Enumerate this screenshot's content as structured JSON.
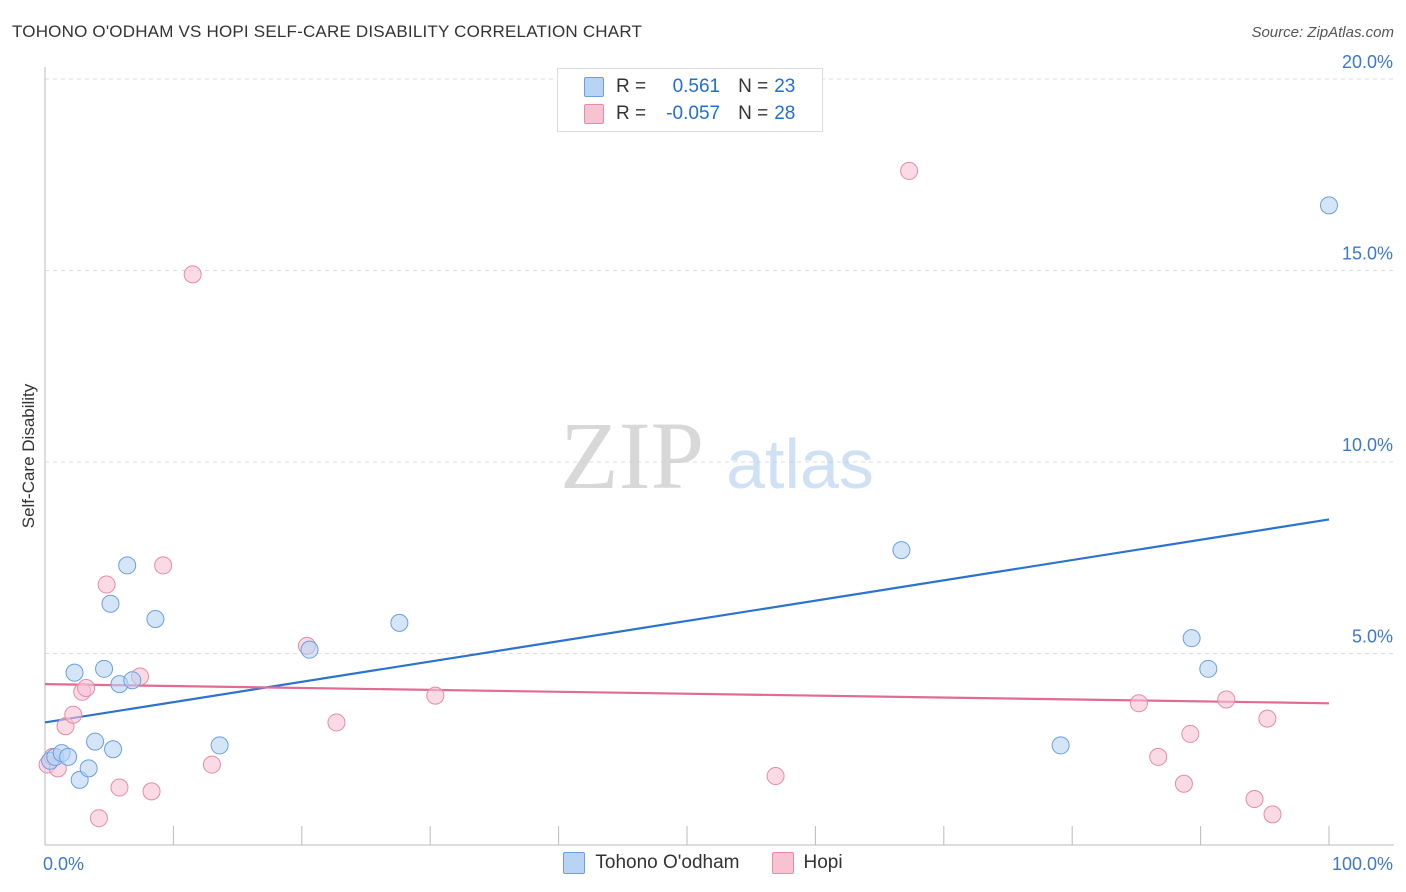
{
  "title": "TOHONO O'ODHAM VS HOPI SELF-CARE DISABILITY CORRELATION CHART",
  "source": "Source: ZipAtlas.com",
  "watermark": {
    "zip": "ZIP",
    "atlas": "atlas"
  },
  "legend": {
    "r_label": "R =",
    "n_label": "N =",
    "rows": [
      {
        "r": "0.561",
        "n": "23"
      },
      {
        "r": "-0.057",
        "n": "28"
      }
    ]
  },
  "colors": {
    "series1_fill": "#b8d3f3",
    "series1_edge": "#6c9fe0",
    "series1_line": "#2c72cf",
    "series2_fill": "#f7c3d3",
    "series2_edge": "#e88aa8",
    "series2_line": "#e06b95",
    "tick_label": "#3b78d0",
    "grid": "#dcdcdc"
  },
  "chart_data": {
    "type": "scatter",
    "title": "TOHONO O'ODHAM VS HOPI SELF-CARE DISABILITY CORRELATION CHART",
    "xlabel": "",
    "ylabel": "Self-Care Disability",
    "xlim": [
      0,
      100
    ],
    "ylim": [
      0,
      20
    ],
    "x_tick_labels": [
      "0.0%",
      "100.0%"
    ],
    "y_ticks": [
      5,
      10,
      15,
      20
    ],
    "y_tick_labels": [
      "5.0%",
      "10.0%",
      "15.0%",
      "20.0%"
    ],
    "series": [
      {
        "name": "Tohono O'odham",
        "r": 0.561,
        "n": 23,
        "trend": {
          "x": [
            0,
            100
          ],
          "y": [
            3.2,
            8.5
          ]
        },
        "points": [
          {
            "x": 0.4,
            "y": 2.2
          },
          {
            "x": 0.8,
            "y": 2.3
          },
          {
            "x": 1.3,
            "y": 2.4
          },
          {
            "x": 1.8,
            "y": 2.3
          },
          {
            "x": 2.3,
            "y": 4.5
          },
          {
            "x": 2.7,
            "y": 1.7
          },
          {
            "x": 3.4,
            "y": 2.0
          },
          {
            "x": 3.9,
            "y": 2.7
          },
          {
            "x": 4.6,
            "y": 4.6
          },
          {
            "x": 5.1,
            "y": 6.3
          },
          {
            "x": 5.3,
            "y": 2.5
          },
          {
            "x": 5.8,
            "y": 4.2
          },
          {
            "x": 6.4,
            "y": 7.3
          },
          {
            "x": 6.8,
            "y": 4.3
          },
          {
            "x": 8.6,
            "y": 5.9
          },
          {
            "x": 13.6,
            "y": 2.6
          },
          {
            "x": 20.6,
            "y": 5.1
          },
          {
            "x": 27.6,
            "y": 5.8
          },
          {
            "x": 66.7,
            "y": 7.7
          },
          {
            "x": 79.1,
            "y": 2.6
          },
          {
            "x": 89.3,
            "y": 5.4
          },
          {
            "x": 90.6,
            "y": 4.6
          },
          {
            "x": 100.0,
            "y": 16.7
          }
        ]
      },
      {
        "name": "Hopi",
        "r": -0.057,
        "n": 28,
        "trend": {
          "x": [
            0,
            100
          ],
          "y": [
            4.2,
            3.7
          ]
        },
        "points": [
          {
            "x": 0.2,
            "y": 2.1
          },
          {
            "x": 0.6,
            "y": 2.3
          },
          {
            "x": 1.0,
            "y": 2.0
          },
          {
            "x": 1.6,
            "y": 3.1
          },
          {
            "x": 2.2,
            "y": 3.4
          },
          {
            "x": 2.9,
            "y": 4.0
          },
          {
            "x": 3.2,
            "y": 4.1
          },
          {
            "x": 4.2,
            "y": 0.7
          },
          {
            "x": 4.8,
            "y": 6.8
          },
          {
            "x": 5.8,
            "y": 1.5
          },
          {
            "x": 7.4,
            "y": 4.4
          },
          {
            "x": 8.3,
            "y": 1.4
          },
          {
            "x": 9.2,
            "y": 7.3
          },
          {
            "x": 11.5,
            "y": 14.9
          },
          {
            "x": 13.0,
            "y": 2.1
          },
          {
            "x": 20.4,
            "y": 5.2
          },
          {
            "x": 22.7,
            "y": 3.2
          },
          {
            "x": 30.4,
            "y": 3.9
          },
          {
            "x": 56.9,
            "y": 1.8
          },
          {
            "x": 67.3,
            "y": 17.6
          },
          {
            "x": 85.2,
            "y": 3.7
          },
          {
            "x": 86.7,
            "y": 2.3
          },
          {
            "x": 88.7,
            "y": 1.6
          },
          {
            "x": 89.2,
            "y": 2.9
          },
          {
            "x": 92.0,
            "y": 3.8
          },
          {
            "x": 94.2,
            "y": 1.2
          },
          {
            "x": 95.2,
            "y": 3.3
          },
          {
            "x": 95.6,
            "y": 0.8
          }
        ]
      }
    ],
    "legend_position": "top-center"
  }
}
